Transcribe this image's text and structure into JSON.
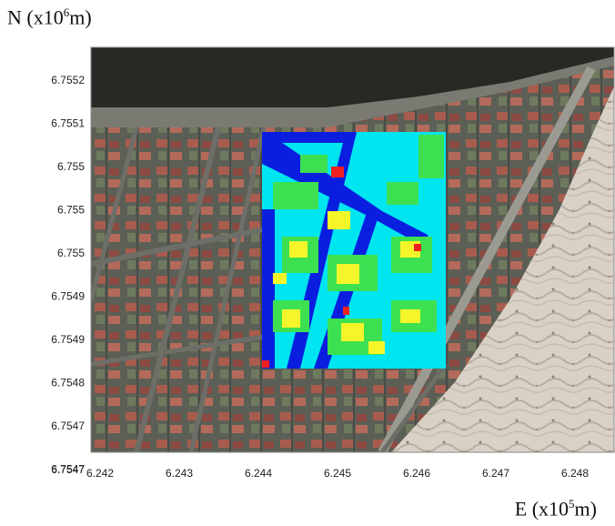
{
  "axis_labels": {
    "y": {
      "prefix": "N (x10",
      "exp": "6",
      "suffix": "m)"
    },
    "x": {
      "prefix": "E (x10",
      "exp": "5",
      "suffix": "m)"
    }
  },
  "y_ticks": [
    "6.7552",
    "6.7551",
    "6.755",
    "6.755",
    "6.755",
    "6.7549",
    "6.7549",
    "6.7548",
    "6.7547",
    "6.7547"
  ],
  "x_ticks": [
    "6.242",
    "6.243",
    "6.244",
    "6.245",
    "6.246",
    "6.247",
    "6.248"
  ],
  "colors": {
    "overlay_background": "#00e5f0",
    "road_class": "#0a1ee0",
    "low_class": "#3de050",
    "mid_class": "#f5f52a",
    "high_class": "#f02020",
    "water": "#2a2824",
    "sand": "#d9d1c6"
  }
}
